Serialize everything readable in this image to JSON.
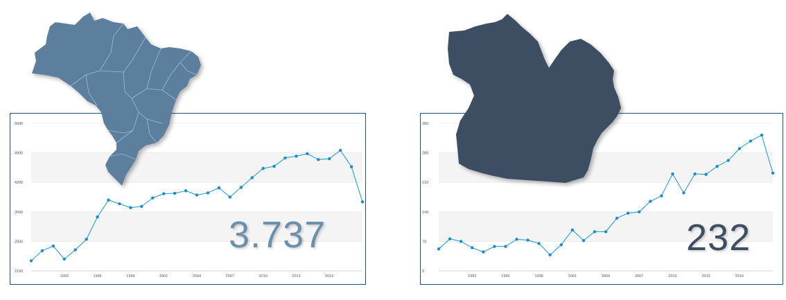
{
  "charts": {
    "left": {
      "big_number": "3.737",
      "map_label": "Brazil"
    },
    "right": {
      "big_number": "232",
      "map_label": "Pará"
    }
  },
  "colors": {
    "line": "#2a9fd6",
    "point": "#1d8ccc",
    "band": "#f4f4f4",
    "grid": "#e4e4e4",
    "frame": "#1f4f79",
    "brazil_map": "#5b7f9e",
    "para_map": "#3e4d62",
    "big_number_left": "#6c8fab",
    "big_number_right": "#3e4d62"
  },
  "chart_data": [
    {
      "type": "line",
      "title": "",
      "xlabel": "",
      "ylabel": "",
      "ylim": [
        2100,
        5600
      ],
      "y_ticks": [
        2100,
        2800,
        3500,
        4200,
        4900,
        5600
      ],
      "x_ticks": [
        1992,
        1995,
        1998,
        2001,
        2004,
        2007,
        2010,
        2013,
        2016
      ],
      "grid": true,
      "x": [
        1989,
        1990,
        1991,
        1992,
        1993,
        1994,
        1995,
        1996,
        1997,
        1998,
        1999,
        2000,
        2001,
        2002,
        2003,
        2004,
        2005,
        2006,
        2007,
        2008,
        2009,
        2010,
        2011,
        2012,
        2013,
        2014,
        2015,
        2016,
        2017,
        2018,
        2019
      ],
      "series": [
        {
          "name": "Brazil",
          "values": [
            2340,
            2580,
            2690,
            2380,
            2600,
            2850,
            3380,
            3780,
            3690,
            3600,
            3630,
            3830,
            3930,
            3940,
            4000,
            3900,
            3950,
            4070,
            3850,
            4080,
            4310,
            4530,
            4580,
            4780,
            4820,
            4880,
            4740,
            4760,
            4960,
            4570,
            3737
          ]
        }
      ]
    },
    {
      "type": "line",
      "title": "",
      "xlabel": "",
      "ylabel": "",
      "ylim": [
        0,
        350
      ],
      "y_ticks": [
        0,
        70,
        140,
        210,
        280,
        350
      ],
      "x_ticks": [
        1992,
        1995,
        1998,
        2001,
        2004,
        2007,
        2010,
        2013,
        2016
      ],
      "grid": true,
      "x": [
        1989,
        1990,
        1991,
        1992,
        1993,
        1994,
        1995,
        1996,
        1997,
        1998,
        1999,
        2000,
        2001,
        2002,
        2003,
        2004,
        2005,
        2006,
        2007,
        2008,
        2009,
        2010,
        2011,
        2012,
        2013,
        2014,
        2015,
        2016,
        2017,
        2018,
        2019
      ],
      "series": [
        {
          "name": "Pará",
          "values": [
            52,
            76,
            70,
            55,
            45,
            58,
            58,
            75,
            73,
            65,
            38,
            62,
            97,
            72,
            93,
            93,
            125,
            137,
            140,
            165,
            178,
            230,
            185,
            230,
            229,
            248,
            262,
            290,
            308,
            322,
            232
          ]
        }
      ]
    }
  ]
}
